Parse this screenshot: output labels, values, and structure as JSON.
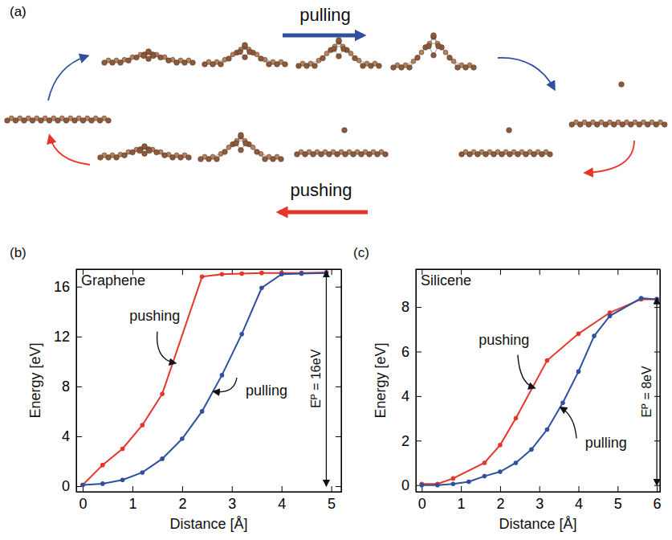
{
  "panel_a": {
    "label": "(a)",
    "top_label": "pulling",
    "bottom_label": "pushing"
  },
  "chart_data": [
    {
      "type": "line",
      "panel_label": "(b)",
      "title": "Graphene",
      "x_label": "Distance [Å]",
      "y_label": "Energy [eV]",
      "xlim": [
        -0.13,
        5.2
      ],
      "ylim": [
        -0.45,
        17.4
      ],
      "xticks": [
        0,
        1,
        2,
        3,
        4,
        5
      ],
      "yticks": [
        0,
        4,
        8,
        12,
        16
      ],
      "series": [
        {
          "name": "pushing",
          "color": "#e8352b",
          "marker": "circle",
          "x": [
            0,
            0.4,
            0.8,
            1.2,
            1.6,
            2.4,
            2.8,
            3.2,
            3.6,
            4.0,
            4.4,
            4.9
          ],
          "values": [
            0.1,
            1.7,
            3.0,
            4.9,
            7.4,
            16.8,
            17.0,
            17.05,
            17.1,
            17.1,
            17.1,
            17.15
          ]
        },
        {
          "name": "pulling",
          "color": "#2f4f9f",
          "marker": "circle",
          "x": [
            0,
            0.4,
            0.8,
            1.2,
            1.6,
            2.0,
            2.4,
            2.8,
            3.2,
            3.6,
            4.0,
            4.4,
            4.9
          ],
          "values": [
            0.1,
            0.2,
            0.5,
            1.1,
            2.2,
            3.8,
            6.0,
            8.9,
            12.2,
            15.9,
            17.0,
            17.05,
            17.1
          ]
        }
      ],
      "annotations": [
        "Eᴾ = 16eV"
      ]
    },
    {
      "type": "line",
      "panel_label": "(c)",
      "title": "Silicene",
      "x_label": "Distance [Å]",
      "y_label": "Energy [eV]",
      "xlim": [
        -0.15,
        6.08
      ],
      "ylim": [
        -0.3,
        9.7
      ],
      "xticks": [
        0,
        1,
        2,
        3,
        4,
        5,
        6
      ],
      "yticks": [
        0,
        2,
        4,
        6,
        8
      ],
      "series": [
        {
          "name": "pushing",
          "color": "#e8352b",
          "marker": "circle",
          "x": [
            0,
            0.4,
            0.8,
            1.6,
            2.0,
            2.4,
            3.2,
            4.0,
            4.8,
            5.6,
            6.0
          ],
          "values": [
            0.05,
            0.05,
            0.3,
            1.0,
            1.8,
            3.0,
            5.6,
            6.8,
            7.75,
            8.35,
            8.35
          ]
        },
        {
          "name": "pulling",
          "color": "#2f4f9f",
          "marker": "circle",
          "x": [
            0,
            0.4,
            0.8,
            1.2,
            1.6,
            2.0,
            2.4,
            2.8,
            3.2,
            3.6,
            4.0,
            4.4,
            4.8,
            5.6,
            6.0
          ],
          "values": [
            0,
            0,
            0.05,
            0.15,
            0.4,
            0.6,
            1.0,
            1.6,
            2.5,
            3.7,
            5.1,
            6.7,
            7.6,
            8.4,
            8.35
          ]
        }
      ],
      "annotations": [
        "Eᴾ = 8eV"
      ]
    }
  ]
}
